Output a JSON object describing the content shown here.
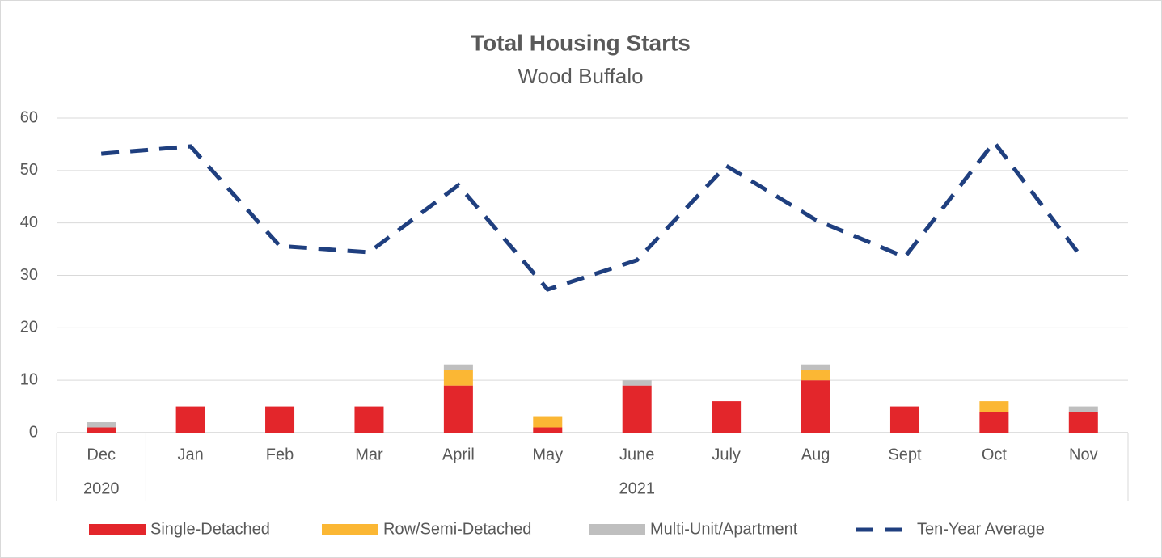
{
  "chart_data": {
    "type": "bar",
    "stacked": true,
    "title": "Total Housing Starts",
    "subtitle": "Wood Buffalo",
    "categories": [
      "Dec",
      "Jan",
      "Feb",
      "Mar",
      "April",
      "May",
      "June",
      "July",
      "Aug",
      "Sept",
      "Oct",
      "Nov"
    ],
    "category_groups": [
      {
        "label": "2020",
        "count": 1
      },
      {
        "label": "2021",
        "count": 11
      }
    ],
    "series": [
      {
        "name": "Single-Detached",
        "color": "#e3262b",
        "values": [
          1,
          5,
          5,
          5,
          9,
          1,
          9,
          6,
          10,
          5,
          4,
          4
        ]
      },
      {
        "name": "Row/Semi-Detached",
        "color": "#fbb734",
        "values": [
          0,
          0,
          0,
          0,
          3,
          2,
          0,
          0,
          2,
          0,
          2,
          0
        ]
      },
      {
        "name": "Multi-Unit/Apartment",
        "color": "#bfbfbf",
        "values": [
          1,
          0,
          0,
          0,
          1,
          0,
          1,
          0,
          1,
          0,
          0,
          1
        ]
      },
      {
        "name": "Ten-Year Average",
        "type": "line",
        "dashed": true,
        "color": "#1f3f7f",
        "values": [
          53.2,
          54.6,
          35.6,
          34.4,
          47.2,
          27.3,
          32.9,
          50.9,
          40.6,
          33.5,
          55.4,
          33
        ]
      }
    ],
    "ylim": [
      0,
      60
    ],
    "yticks": [
      0,
      10,
      20,
      30,
      40,
      50,
      60
    ],
    "grid": true,
    "legend": "bottom"
  }
}
